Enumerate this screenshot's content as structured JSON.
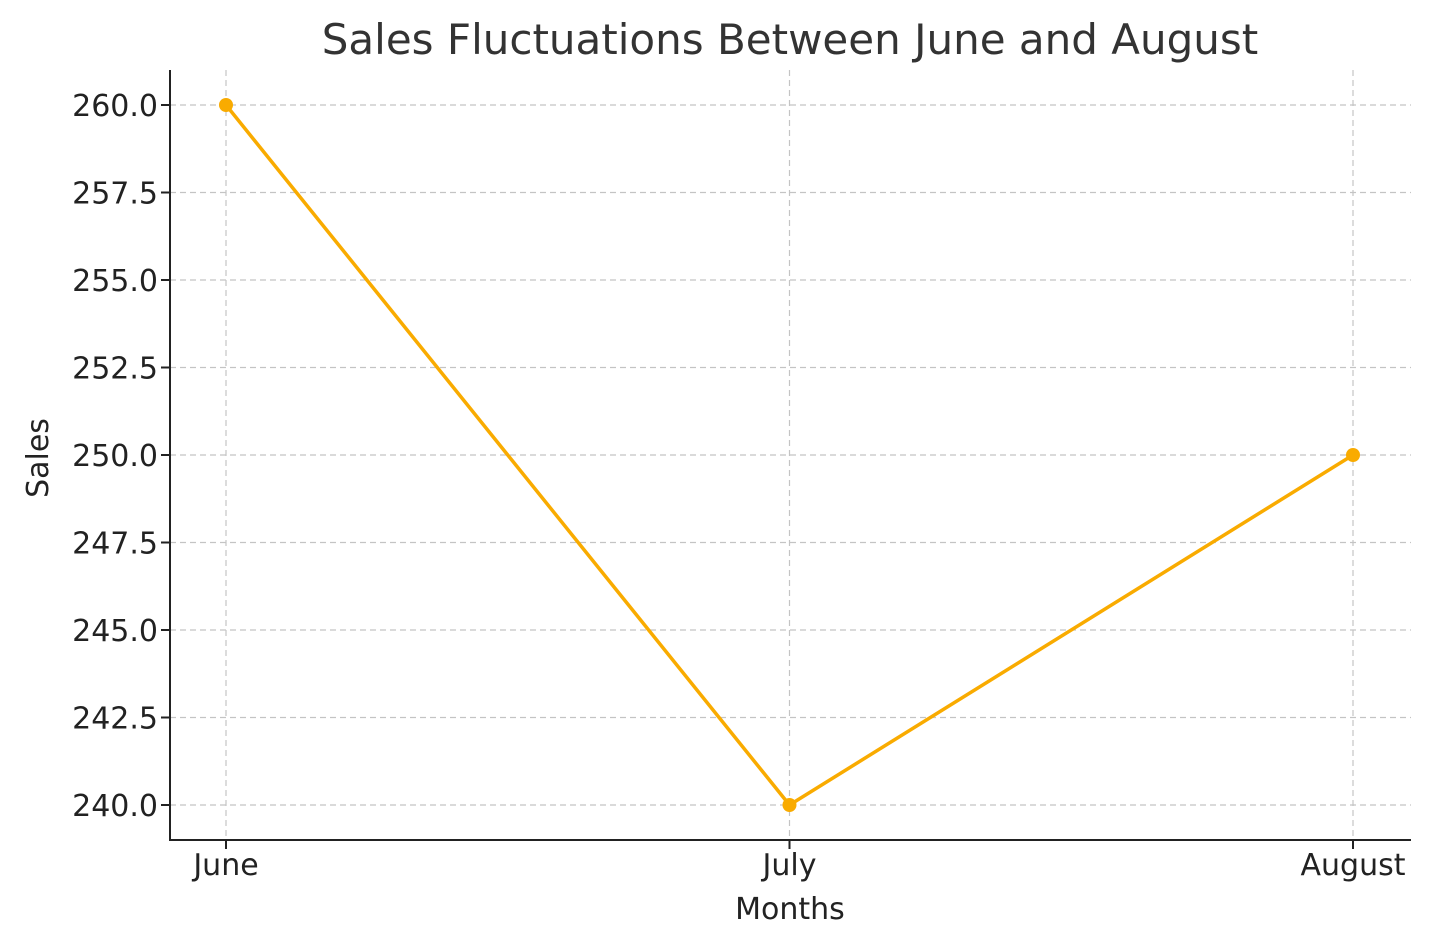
{
  "chart_data": {
    "type": "line",
    "title": "Sales Fluctuations Between June and August",
    "xlabel": "Months",
    "ylabel": "Sales",
    "categories": [
      "June",
      "July",
      "August"
    ],
    "series": [
      {
        "values": [
          260.0,
          240.0,
          250.0
        ],
        "color": "#f9ab00",
        "marker": "circle"
      }
    ],
    "ylim": [
      239.0,
      261.0
    ],
    "yticks": [
      240.0,
      242.5,
      245.0,
      247.5,
      250.0,
      252.5,
      255.0,
      257.5,
      260.0
    ],
    "ytick_labels": [
      "240.0",
      "242.5",
      "245.0",
      "247.5",
      "250.0",
      "252.5",
      "255.0",
      "257.5",
      "260.0"
    ],
    "grid": true,
    "legend": "none"
  }
}
